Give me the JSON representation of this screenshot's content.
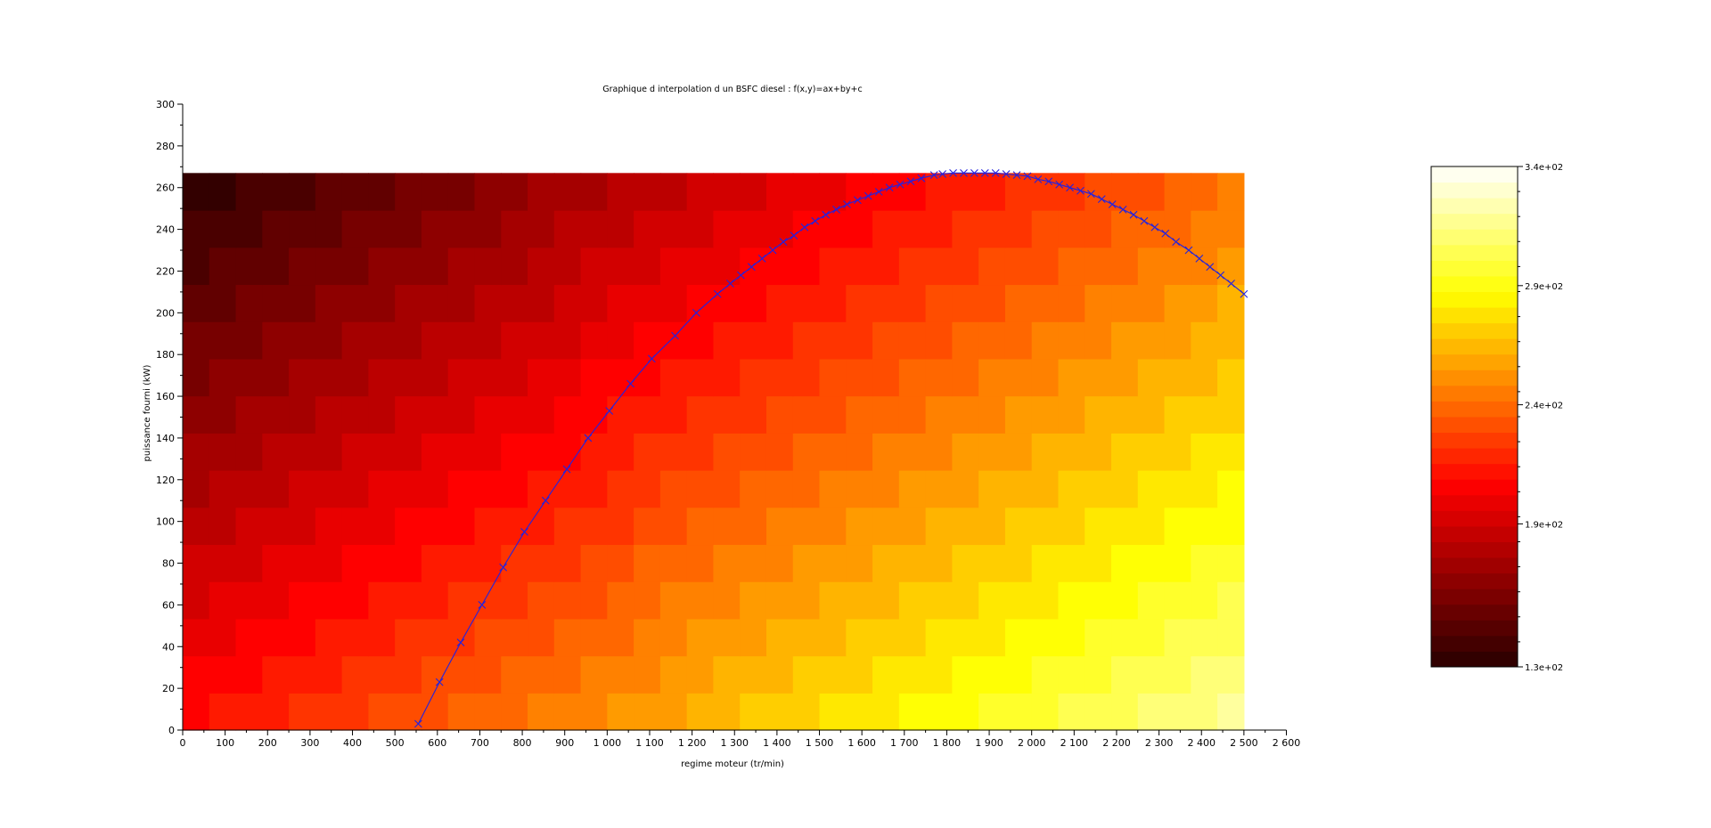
{
  "chart_data": {
    "type": "heatmap",
    "title": "Graphique d interpolation d un BSFC diesel : f(x,y)=ax+by+c",
    "xlabel": "regime moteur (tr/min)",
    "ylabel": "puissance fourni (kW)",
    "xlim": [
      0,
      2600
    ],
    "ylim": [
      0,
      300
    ],
    "x_ticks": [
      "0",
      "100",
      "200",
      "300",
      "400",
      "500",
      "600",
      "700",
      "800",
      "900",
      "1 000",
      "1 100",
      "1 200",
      "1 300",
      "1 400",
      "1 500",
      "1 600",
      "1 700",
      "1 800",
      "1 900",
      "2 000",
      "2 100",
      "2 200",
      "2 300",
      "2 400",
      "2 500",
      "2 600"
    ],
    "y_ticks": [
      "0",
      "20",
      "40",
      "60",
      "80",
      "100",
      "120",
      "140",
      "160",
      "180",
      "200",
      "220",
      "240",
      "260",
      "280",
      "300"
    ],
    "heatmap": {
      "x_range": [
        0,
        2500
      ],
      "y_range": [
        0,
        267
      ],
      "x_cells": 40,
      "y_cells": 15,
      "value_at_origin": 210,
      "value_at_x_max_y_min": 322,
      "value_at_x_min_y_max": 130,
      "value_at_x_max_y_max": 242,
      "colormap": "hot"
    },
    "colorbar": {
      "min": 130,
      "max": 340,
      "labels": [
        "3.4e+02",
        "2.9e+02",
        "2.4e+02",
        "1.9e+02",
        "1.3e+02"
      ],
      "label_values": [
        340,
        290,
        240,
        190,
        130
      ]
    },
    "series": [
      {
        "marker": "x",
        "color": "#2222e0",
        "x": [
          555,
          605,
          655,
          705,
          755,
          805,
          855,
          905,
          955,
          1005,
          1055,
          1105,
          1160,
          1210,
          1260,
          1290,
          1315,
          1340,
          1365,
          1390,
          1415,
          1440,
          1465,
          1490,
          1515,
          1540,
          1565,
          1590,
          1615,
          1640,
          1665,
          1690,
          1715,
          1740,
          1770,
          1790,
          1815,
          1840,
          1865,
          1890,
          1915,
          1940,
          1965,
          1990,
          2015,
          2040,
          2065,
          2090,
          2115,
          2140,
          2165,
          2190,
          2215,
          2240,
          2265,
          2290,
          2315,
          2340,
          2370,
          2395,
          2420,
          2445,
          2470,
          2500
        ],
        "y": [
          3,
          23,
          42,
          60,
          78,
          95,
          110,
          125,
          140,
          153,
          166,
          178,
          189,
          200,
          209,
          214,
          218,
          222,
          226,
          230,
          234,
          237,
          241,
          244,
          247,
          249.5,
          252,
          254,
          256,
          258,
          260,
          261.5,
          263,
          264.5,
          266,
          266.5,
          267,
          267,
          267,
          267,
          267,
          266.5,
          266,
          265.5,
          264,
          263,
          261.5,
          260,
          258.5,
          257,
          254.5,
          252,
          249.5,
          247,
          244,
          241,
          238,
          234,
          230,
          226,
          222,
          218,
          214,
          209
        ]
      }
    ]
  }
}
